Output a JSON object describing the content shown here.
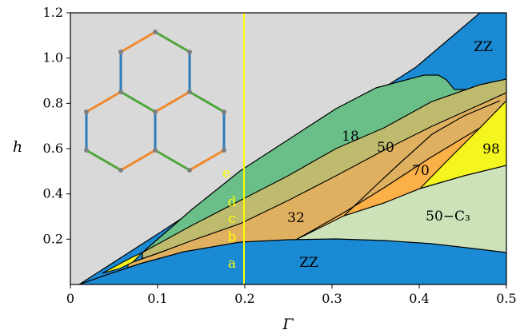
{
  "chart_data": {
    "type": "area",
    "title": "",
    "xlabel": "Γ",
    "ylabel": "h",
    "xlim": [
      0,
      0.5
    ],
    "ylim": [
      0,
      1.2
    ],
    "xticks": [
      "0",
      "0.1",
      "0.2",
      "0.3",
      "0.4",
      "0.5"
    ],
    "yticks": [
      "0.2",
      "0.4",
      "0.6",
      "0.8",
      "1.0",
      "1.2"
    ],
    "grid": false,
    "colors": {
      "background": "#d9d9d9",
      "zz": "#1a8ad4",
      "region_18": "#6abf88",
      "region_50": "#bfbb6e",
      "region_32": "#dfb060",
      "region_70": "#fbb048",
      "region_98": "#f5f520",
      "region_50c3": "#cde2b8",
      "marker_line": "#ffff00",
      "lattice_blue": "#2e7bb8",
      "lattice_orange": "#f0892c",
      "lattice_green": "#4fa53c",
      "lattice_node": "#808080"
    },
    "series": [
      {
        "name": "ZZ",
        "points": [
          [
            0.015,
            0.0
          ],
          [
            0.05,
            0.06
          ],
          [
            0.1,
            0.12
          ],
          [
            0.15,
            0.16
          ],
          [
            0.2,
            0.185
          ],
          [
            0.25,
            0.198
          ],
          [
            0.3,
            0.2
          ],
          [
            0.35,
            0.196
          ],
          [
            0.4,
            0.185
          ],
          [
            0.45,
            0.165
          ],
          [
            0.5,
            0.14
          ]
        ]
      },
      {
        "name": "ZZ",
        "points": [
          [
            0.0,
            0.0
          ],
          [
            0.1,
            0.23
          ],
          [
            0.2,
            0.46
          ],
          [
            0.3,
            0.69
          ],
          [
            0.4,
            0.92
          ],
          [
            0.475,
            1.2
          ]
        ]
      },
      {
        "name": "18",
        "points": [
          [
            0.09,
            0.14
          ],
          [
            0.15,
            0.28
          ],
          [
            0.2,
            0.39
          ],
          [
            0.25,
            0.51
          ],
          [
            0.3,
            0.65
          ],
          [
            0.35,
            0.79
          ],
          [
            0.4,
            0.92
          ],
          [
            0.425,
            0.93
          ],
          [
            0.44,
            0.87
          ]
        ]
      },
      {
        "name": "50",
        "points": [
          [
            0.09,
            0.14
          ],
          [
            0.15,
            0.23
          ],
          [
            0.2,
            0.31
          ],
          [
            0.25,
            0.4
          ],
          [
            0.3,
            0.51
          ],
          [
            0.35,
            0.62
          ],
          [
            0.4,
            0.74
          ],
          [
            0.45,
            0.86
          ],
          [
            0.5,
            0.9
          ]
        ]
      },
      {
        "name": "32",
        "points": [
          [
            0.09,
            0.14
          ],
          [
            0.15,
            0.21
          ],
          [
            0.2,
            0.26
          ],
          [
            0.25,
            0.33
          ],
          [
            0.3,
            0.41
          ],
          [
            0.35,
            0.51
          ],
          [
            0.4,
            0.62
          ],
          [
            0.45,
            0.74
          ],
          [
            0.5,
            0.85
          ]
        ]
      },
      {
        "name": "70",
        "points": [
          [
            0.26,
            0.2
          ],
          [
            0.3,
            0.29
          ],
          [
            0.35,
            0.37
          ],
          [
            0.4,
            0.47
          ],
          [
            0.45,
            0.59
          ],
          [
            0.5,
            0.71
          ]
        ]
      },
      {
        "name": "98",
        "points": [
          [
            0.39,
            0.42
          ],
          [
            0.43,
            0.57
          ],
          [
            0.47,
            0.7
          ],
          [
            0.5,
            0.81
          ]
        ]
      },
      {
        "name": "50−C₃",
        "points": [
          [
            0.3,
            0.29
          ],
          [
            0.4,
            0.42
          ],
          [
            0.5,
            0.52
          ]
        ]
      }
    ],
    "annotations": {
      "vertical_line_x": 0.2,
      "region_labels": [
        "ZZ",
        "ZZ",
        "18",
        "50",
        "32",
        "70",
        "98",
        "50−C₃"
      ],
      "marker_labels": [
        "e",
        "d",
        "c",
        "b",
        "a"
      ]
    }
  }
}
